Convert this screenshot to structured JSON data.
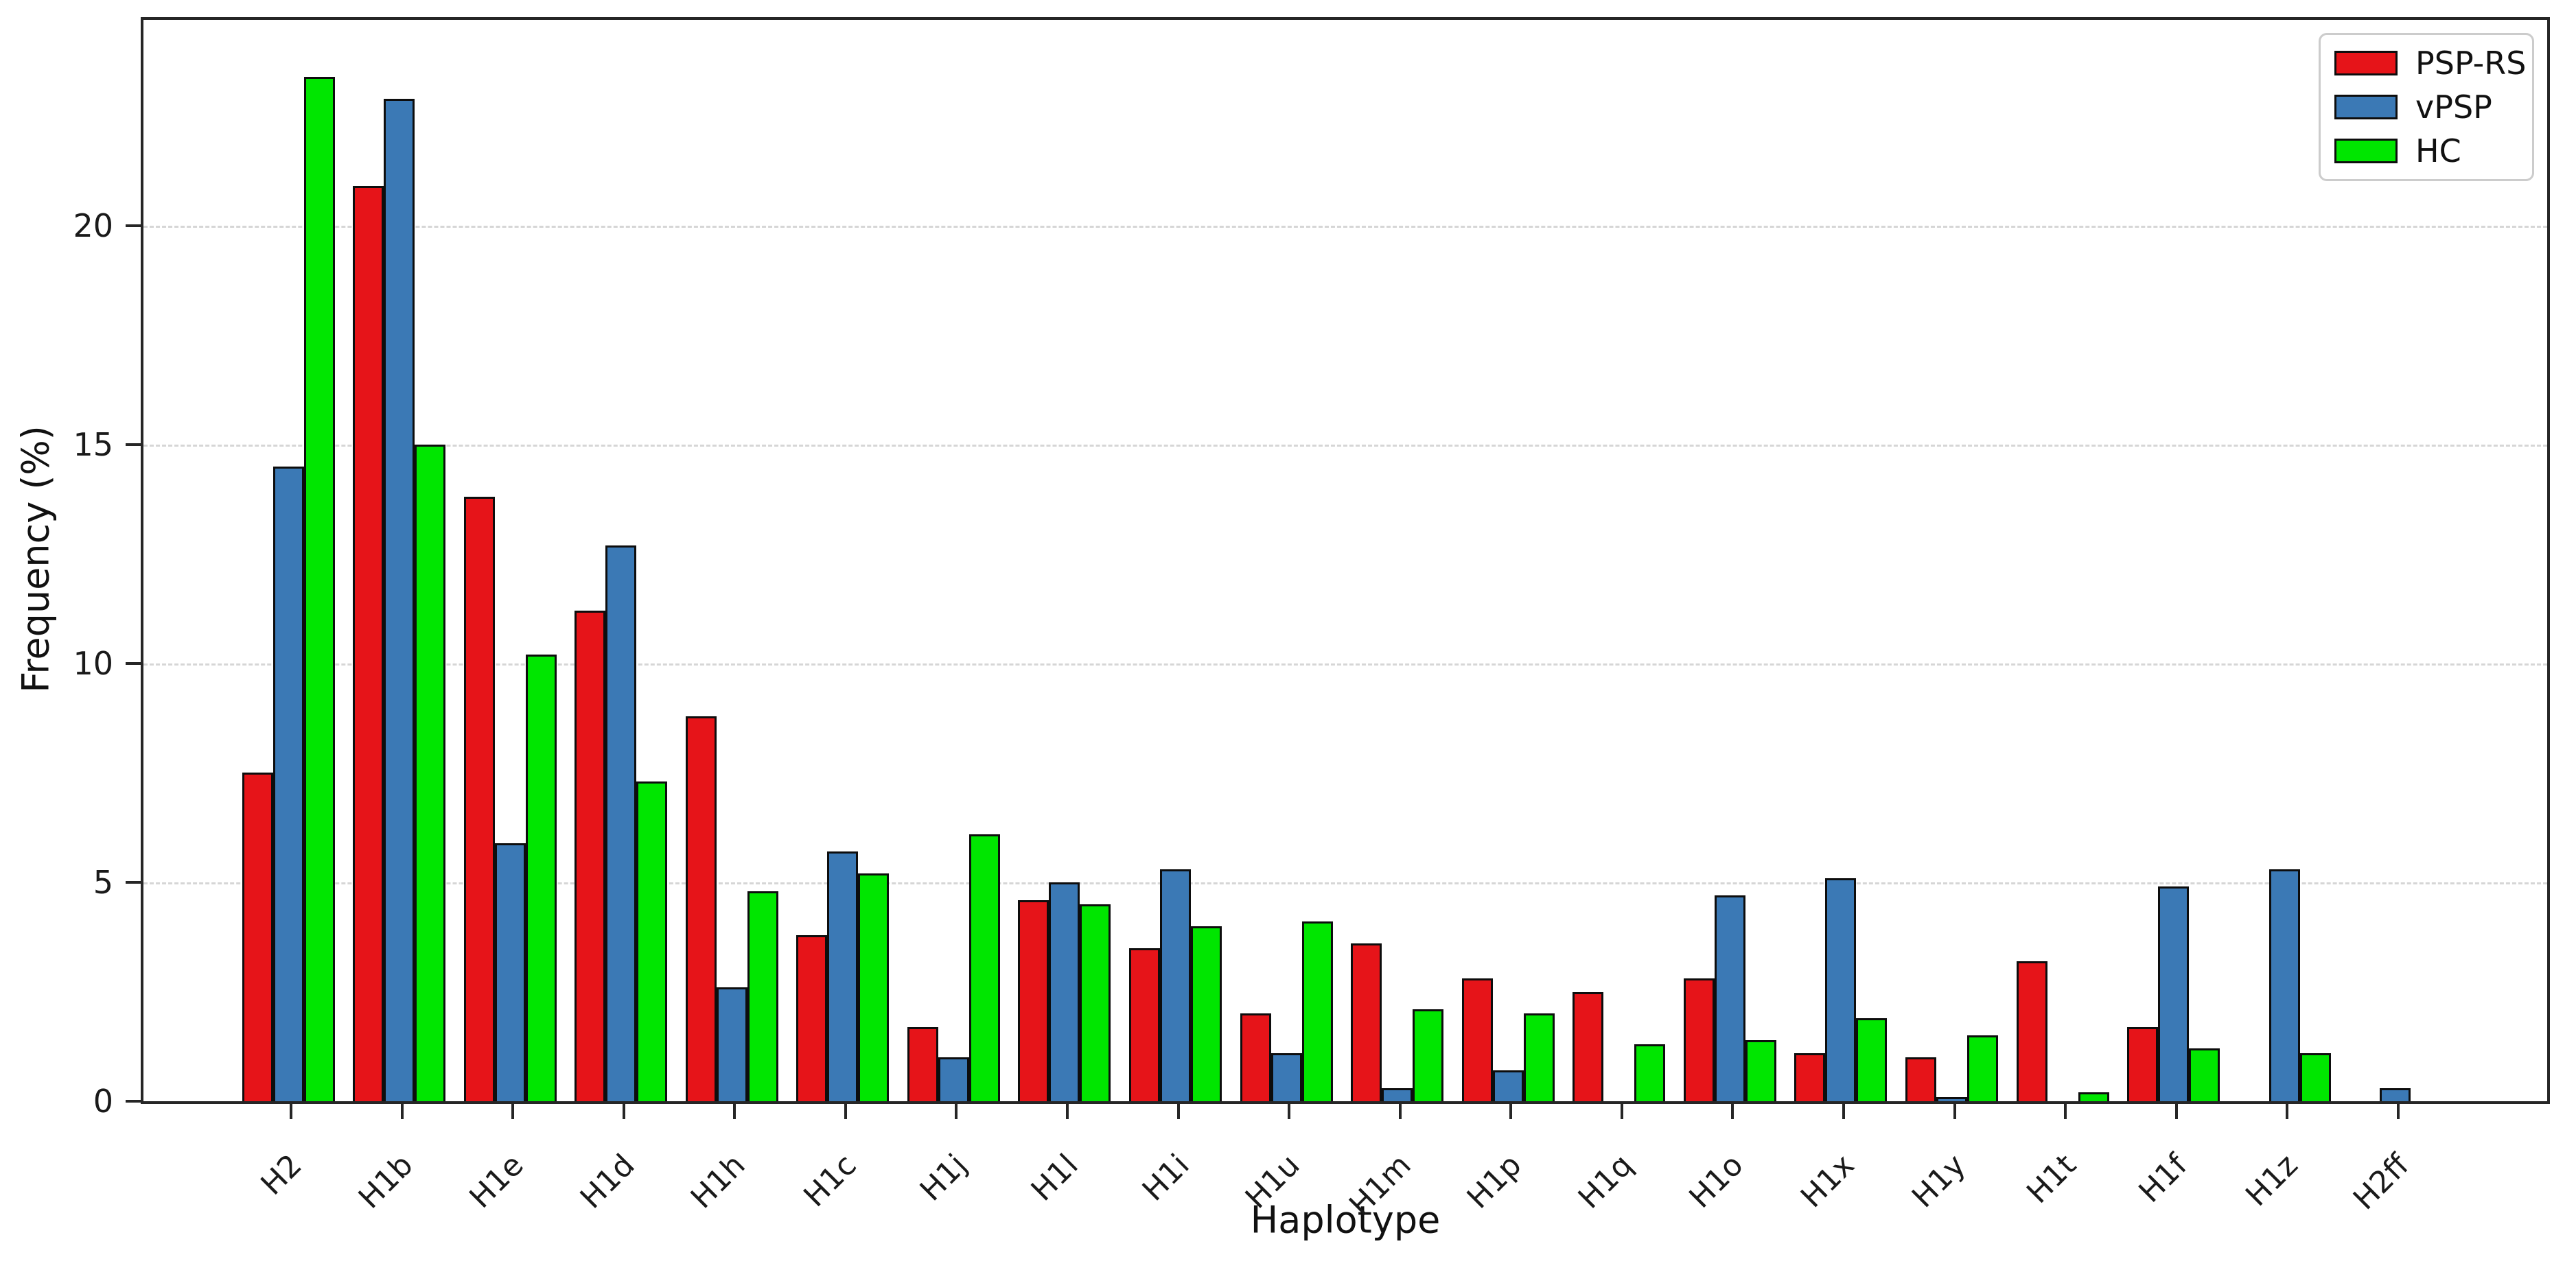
{
  "chart_data": {
    "type": "bar",
    "title": "",
    "xlabel": "Haplotype",
    "ylabel": "Frequency (%)",
    "categories": [
      "H2",
      "H1b",
      "H1e",
      "H1d",
      "H1h",
      "H1c",
      "H1j",
      "H1l",
      "H1i",
      "H1u",
      "H1m",
      "H1p",
      "H1q",
      "H1o",
      "H1x",
      "H1y",
      "H1t",
      "H1f",
      "H1z",
      "H2ff"
    ],
    "series": [
      {
        "name": "PSP-RS",
        "color": "#e61419",
        "values": [
          7.5,
          20.9,
          13.8,
          11.2,
          8.8,
          3.8,
          1.7,
          4.6,
          3.5,
          2.0,
          3.6,
          2.8,
          2.5,
          2.8,
          1.1,
          1.0,
          3.2,
          1.7,
          0,
          0
        ]
      },
      {
        "name": "vPSP",
        "color": "#3b79b5",
        "values": [
          14.5,
          22.9,
          5.9,
          12.7,
          2.6,
          5.7,
          1.0,
          5.0,
          5.3,
          1.1,
          0.3,
          0.7,
          0,
          4.7,
          5.1,
          0.1,
          0,
          4.9,
          5.3,
          0.3
        ]
      },
      {
        "name": "HC",
        "color": "#00e600",
        "values": [
          23.4,
          15.0,
          10.2,
          7.3,
          4.8,
          5.2,
          6.1,
          4.5,
          4.0,
          4.1,
          2.1,
          2.0,
          1.3,
          1.4,
          1.9,
          1.5,
          0.2,
          1.2,
          1.1,
          0
        ]
      }
    ],
    "yticks": [
      0,
      5,
      10,
      15,
      20
    ],
    "ylim": [
      0,
      24.7
    ],
    "grid": "horizontal dashed at yticks",
    "legend_position": "upper right",
    "bar_edge_color": "#0d0d0d"
  }
}
